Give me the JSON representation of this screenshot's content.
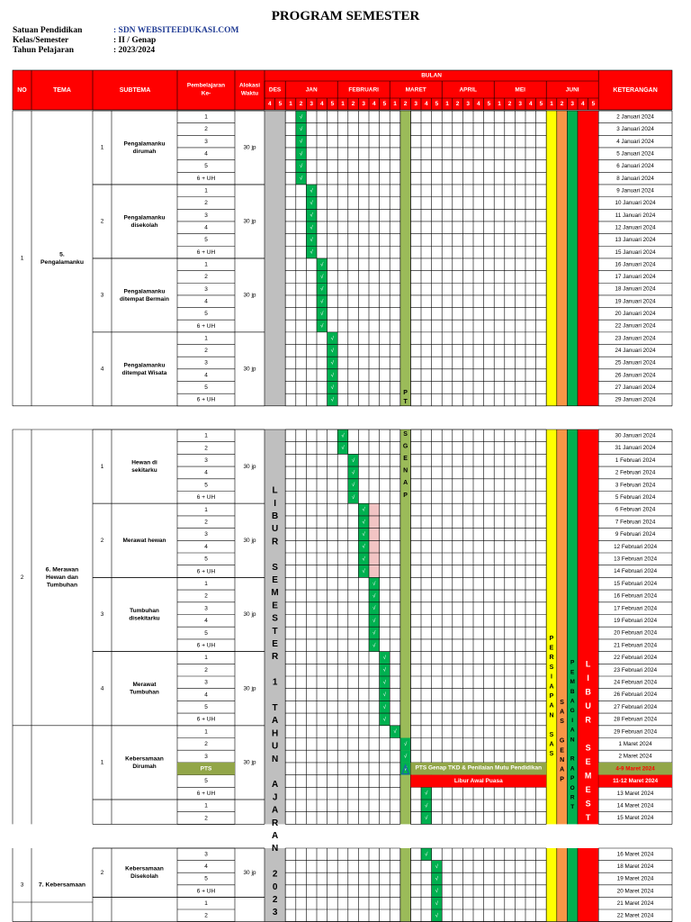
{
  "title": "PROGRAM SEMESTER",
  "info": [
    {
      "label": "Satuan Pendidikan",
      "value": ": SDN WEBSITEEDUKASI.COM"
    },
    {
      "label": "Kelas/Semester",
      "value": ": II / Genap"
    },
    {
      "label": "Tahun Pelajaran",
      "value": ": 2023/2024"
    }
  ],
  "header": {
    "no": "NO",
    "tema": "TEMA",
    "subtema": "SUBTEMA",
    "pembelajaran": [
      "Pembelajaran",
      "Ke-"
    ],
    "alokasi": [
      "Alokasi",
      "Waktu"
    ],
    "bulan": "BULAN",
    "keterangan": "KETERANGAN",
    "months": [
      "DES",
      "JAN",
      "FEBRUARI",
      "MARET",
      "APRIL",
      "MEI",
      "JUNI"
    ],
    "weeks": [
      "4",
      "5",
      "1",
      "2",
      "3",
      "4",
      "5",
      "1",
      "2",
      "3",
      "4",
      "5",
      "1",
      "2",
      "3",
      "4",
      "5",
      "1",
      "2",
      "3",
      "4",
      "5",
      "1",
      "2",
      "3",
      "4",
      "5",
      "1",
      "2",
      "3",
      "4",
      "5"
    ]
  },
  "themes": [
    {
      "no": "1",
      "name": [
        "5.",
        "Pengalamanku"
      ]
    },
    {
      "no": "2",
      "name": [
        "6. Merawan",
        "Hewan dan",
        "Tumbuhan"
      ]
    },
    {
      "no": "3",
      "name": [
        "7. Kebersamaan"
      ]
    }
  ],
  "subthemes": [
    {
      "no": "1",
      "name": [
        "Pengalamanku",
        "dirumah"
      ],
      "jp": "30 jp"
    },
    {
      "no": "2",
      "name": [
        "Pengalamanku",
        "disekolah"
      ],
      "jp": "30 jp"
    },
    {
      "no": "3",
      "name": [
        "Pengalamanku",
        "ditempat Bermain"
      ],
      "jp": "30 jp"
    },
    {
      "no": "4",
      "name": [
        "Pengalamanku",
        "ditempat Wisata"
      ],
      "jp": "30 jp"
    },
    {
      "no": "1",
      "name": [
        "Hewan di",
        "sekitarku"
      ],
      "jp": "30 jp"
    },
    {
      "no": "2",
      "name": [
        "Merawat hewan"
      ],
      "jp": "30 jp"
    },
    {
      "no": "3",
      "name": [
        "Tumbuhan",
        "disekitarku"
      ],
      "jp": "30 jp"
    },
    {
      "no": "4",
      "name": [
        "Merawat",
        "Tumbuhan"
      ],
      "jp": "30 jp"
    },
    {
      "no": "1",
      "name": [
        "Kebersamaan",
        "Dirumah"
      ],
      "jp": "30 jp"
    },
    {
      "no": "2",
      "name": [
        "Kebersamaan",
        "Disekolah"
      ],
      "jp": "30 jp"
    }
  ],
  "lesson_labels": [
    "1",
    "2",
    "3",
    "4",
    "5",
    "6 + UH",
    "PTS"
  ],
  "keterangan": {
    "block1": [
      "2 Januari 2024",
      "3 Januari 2024",
      "4 Januari 2024",
      "5 Januari 2024",
      "6 Januari 2024",
      "8 Januari 2024",
      "9 Januari 2024",
      "10 Januari 2024",
      "11 Januari 2024",
      "12 Januari 2024",
      "13 Januari 2024",
      "15 Januari 2024",
      "16 Januari 2024",
      "17 Januari 2024",
      "18 Januari 2024",
      "19 Januari 2024",
      "20 Januari 2024",
      "22 Januari 2024",
      "23 Januari 2024",
      "24 Januari 2024",
      "25 Januari 2024",
      "26 Januari 2024",
      "27 Januari 2024",
      "29 Januari 2024"
    ],
    "block2": [
      "30 Januari 2024",
      "31 Januari 2024",
      "1 Februari 2024",
      "2 Februari 2024",
      "3 Februari 2024",
      "5 Februari 2024",
      "6 Februari 2024",
      "7 Februari 2024",
      "9 Februari 2024",
      "12 Februari 2024",
      "13 Februari 2024",
      "14 Februari 2024",
      "15 Februari 2024",
      "16 Februari 2024",
      "17 Februari 2024",
      "19 Februari 2024",
      "20 Februari 2024",
      "21 Februari 2024",
      "22 Februari 2024",
      "23 Februari 2024",
      "24 Februari 2024",
      "26 Februari 2024",
      "27 Februari 2024",
      "28 Februari 2024",
      "29 Februari 2024",
      "1 Maret 2024",
      "2 Maret 2024",
      "4-9 Maret 2024",
      "11-12 Maret 2024",
      "13 Maret 2024",
      "14 Maret 2024",
      "15 Maret 2024"
    ],
    "block3": [
      "16 Maret 2024",
      "18 Maret 2024",
      "19 Maret 2024",
      "20 Maret 2024",
      "21 Maret 2024",
      "22 Maret 2024"
    ]
  },
  "notes": {
    "pts_banner": "PTS Genap TKD & Penilaian Mutu Pendidikan",
    "libur_awal_puasa": "Libur Awal Puasa",
    "libur_semester_1": "LIBUR SEMESTER 1 TAHUN AJARAN 2023",
    "pts_marker": "PT",
    "sgenap": "SGENAP",
    "persiapan_sas": "PERSIAPAN SAS",
    "sas_genap": "SAS GENAP",
    "pembagian_raport": "PEMBAGIAN RAPORT",
    "libur_semester": "LIBUR SEMESTER"
  },
  "check_mark": "√",
  "colors": {
    "header_red": "#ff0000",
    "check_green": "#00b050",
    "olive": "#9bbb59",
    "gray": "#bfbfbf",
    "yellow": "#ffff00",
    "orange": "#f79646",
    "pink": "#f2c4c4",
    "date_highlight_green": "#92a648",
    "grid": "#000000"
  }
}
